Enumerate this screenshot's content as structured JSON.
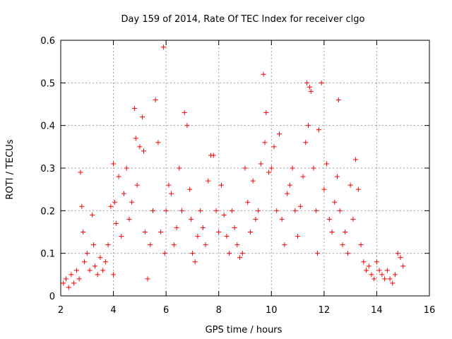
{
  "chart_data": {
    "type": "scatter",
    "title": "Day 159 of 2014, Rate Of TEC Index for receiver clgo",
    "xlabel": "GPS time / hours",
    "ylabel": "ROTI / TECUs",
    "xlim": [
      2,
      16
    ],
    "ylim": [
      0,
      0.6
    ],
    "x_ticks": [
      2,
      4,
      6,
      8,
      10,
      12,
      14,
      16
    ],
    "y_ticks": [
      0,
      0.1,
      0.2,
      0.3,
      0.4,
      0.5,
      0.6
    ],
    "x_tick_labels": [
      "2",
      "4",
      "6",
      "8",
      "10",
      "12",
      "14",
      "16"
    ],
    "y_tick_labels": [
      "0",
      "0.1",
      "0.2",
      "0.3",
      "0.4",
      "0.5",
      "0.6"
    ],
    "grid": true,
    "marker": "+",
    "series_color": "#ff0000",
    "series": [
      {
        "name": "ROTI",
        "x": [
          2.1,
          2.2,
          2.3,
          2.4,
          2.5,
          2.6,
          2.7,
          2.75,
          2.8,
          2.85,
          2.9,
          3.0,
          3.1,
          3.2,
          3.25,
          3.3,
          3.4,
          3.5,
          3.6,
          3.7,
          3.8,
          3.9,
          4.0,
          4.0,
          4.05,
          4.1,
          4.2,
          4.3,
          4.4,
          4.5,
          4.6,
          4.7,
          4.8,
          4.85,
          4.9,
          5.0,
          5.1,
          5.15,
          5.2,
          5.3,
          5.4,
          5.5,
          5.6,
          5.7,
          5.8,
          5.9,
          5.95,
          6.0,
          6.1,
          6.2,
          6.3,
          6.4,
          6.5,
          6.6,
          6.7,
          6.8,
          6.9,
          6.95,
          7.0,
          7.1,
          7.2,
          7.3,
          7.4,
          7.5,
          7.6,
          7.7,
          7.8,
          7.9,
          8.0,
          8.1,
          8.2,
          8.3,
          8.4,
          8.5,
          8.6,
          8.7,
          8.8,
          8.9,
          9.0,
          9.1,
          9.2,
          9.3,
          9.4,
          9.5,
          9.6,
          9.7,
          9.75,
          9.8,
          9.9,
          10.0,
          10.1,
          10.2,
          10.3,
          10.4,
          10.5,
          10.6,
          10.7,
          10.8,
          10.9,
          11.0,
          11.1,
          11.2,
          11.3,
          11.35,
          11.4,
          11.45,
          11.5,
          11.6,
          11.7,
          11.75,
          11.8,
          11.9,
          12.0,
          12.1,
          12.2,
          12.3,
          12.4,
          12.5,
          12.55,
          12.6,
          12.7,
          12.8,
          12.9,
          13.0,
          13.1,
          13.2,
          13.3,
          13.4,
          13.5,
          13.6,
          13.7,
          13.8,
          13.9,
          14.0,
          14.1,
          14.2,
          14.3,
          14.4,
          14.5,
          14.6,
          14.7,
          14.8,
          14.9,
          15.0
        ],
        "y": [
          0.03,
          0.04,
          0.02,
          0.05,
          0.03,
          0.06,
          0.04,
          0.29,
          0.21,
          0.15,
          0.08,
          0.1,
          0.06,
          0.19,
          0.12,
          0.07,
          0.05,
          0.09,
          0.06,
          0.08,
          0.12,
          0.21,
          0.31,
          0.05,
          0.22,
          0.17,
          0.28,
          0.14,
          0.24,
          0.3,
          0.18,
          0.22,
          0.44,
          0.37,
          0.26,
          0.35,
          0.42,
          0.34,
          0.15,
          0.04,
          0.12,
          0.2,
          0.46,
          0.36,
          0.15,
          0.584,
          0.1,
          0.2,
          0.26,
          0.24,
          0.12,
          0.16,
          0.3,
          0.2,
          0.43,
          0.4,
          0.25,
          0.18,
          0.1,
          0.08,
          0.14,
          0.2,
          0.16,
          0.12,
          0.27,
          0.33,
          0.33,
          0.2,
          0.15,
          0.26,
          0.19,
          0.14,
          0.1,
          0.2,
          0.16,
          0.12,
          0.09,
          0.1,
          0.3,
          0.22,
          0.15,
          0.27,
          0.18,
          0.2,
          0.31,
          0.52,
          0.36,
          0.43,
          0.29,
          0.3,
          0.35,
          0.2,
          0.38,
          0.18,
          0.12,
          0.24,
          0.26,
          0.3,
          0.2,
          0.14,
          0.21,
          0.28,
          0.36,
          0.5,
          0.4,
          0.49,
          0.48,
          0.3,
          0.2,
          0.1,
          0.39,
          0.5,
          0.25,
          0.31,
          0.18,
          0.15,
          0.22,
          0.28,
          0.46,
          0.2,
          0.12,
          0.15,
          0.1,
          0.26,
          0.18,
          0.32,
          0.25,
          0.12,
          0.08,
          0.06,
          0.07,
          0.05,
          0.04,
          0.08,
          0.06,
          0.05,
          0.04,
          0.06,
          0.04,
          0.03,
          0.05,
          0.1,
          0.09,
          0.07
        ]
      }
    ]
  }
}
